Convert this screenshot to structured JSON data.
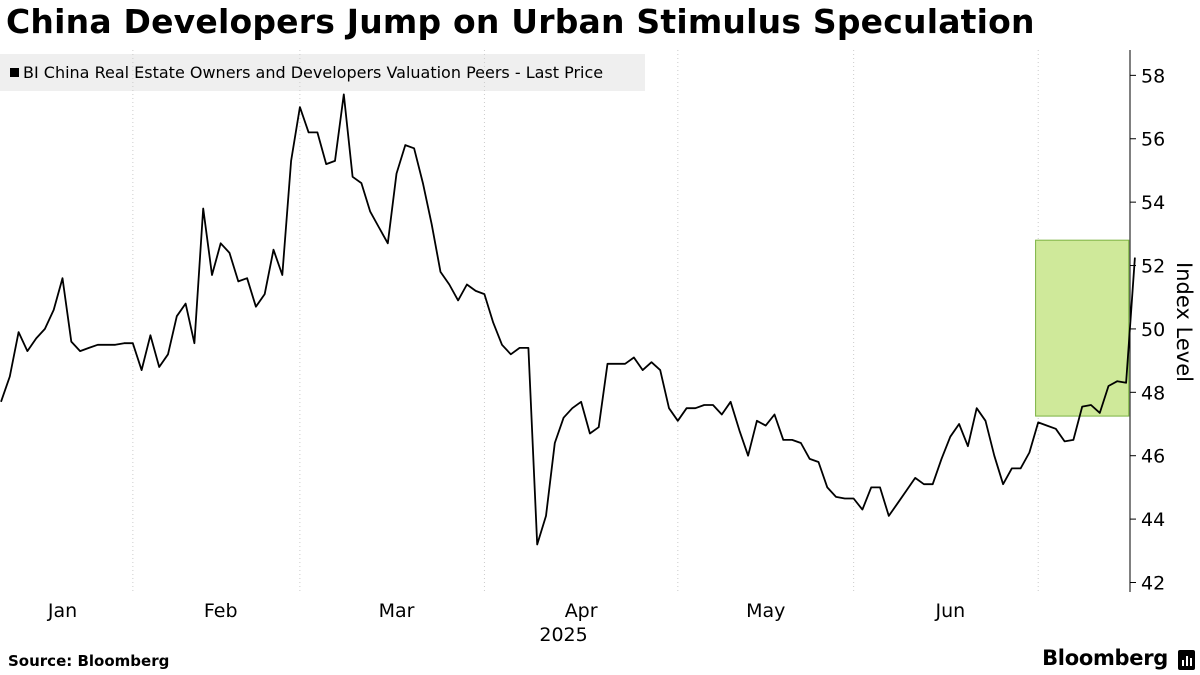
{
  "header": {
    "title": "China Developers Jump on Urban Stimulus Speculation"
  },
  "footer": {
    "source": "Source: Bloomberg",
    "brand": "Bloomberg"
  },
  "colors": {
    "line": "#000000",
    "highlight_fill": "#cfe99a",
    "highlight_stroke": "#7cb342",
    "legend_bg": "#efefef",
    "grid": "#cccccc"
  },
  "chart_data": {
    "type": "line",
    "ylabel": "Index Level",
    "ylim": [
      41.7,
      58.8
    ],
    "yticks": [
      42,
      44,
      46,
      48,
      50,
      52,
      54,
      56,
      58
    ],
    "x_unit": "trading day index (day 0 = 2 Jan 2025)",
    "xlim": [
      0,
      126
    ],
    "month_labels": [
      {
        "label": "Jan",
        "pos": 7
      },
      {
        "label": "Feb",
        "pos": 25
      },
      {
        "label": "Mar",
        "pos": 45
      },
      {
        "label": "Apr",
        "pos": 66
      },
      {
        "label": "May",
        "pos": 87
      },
      {
        "label": "Jun",
        "pos": 108
      }
    ],
    "year_label": {
      "label": "2025",
      "pos": 64
    },
    "month_boundaries": [
      15,
      34,
      55,
      77,
      97,
      118
    ],
    "highlight": {
      "x0": 117.7,
      "x1": 128.3,
      "y0": 47.25,
      "y1": 52.8
    },
    "series": [
      {
        "name": "BI China Real Estate Owners and Developers Valuation Peers - Last Price",
        "values": [
          47.7,
          48.5,
          49.9,
          49.3,
          49.7,
          50.0,
          50.6,
          51.6,
          49.6,
          49.3,
          49.4,
          49.5,
          49.5,
          49.5,
          49.55,
          49.55,
          48.7,
          49.8,
          48.8,
          49.2,
          50.4,
          50.8,
          49.55,
          53.8,
          51.7,
          52.7,
          52.4,
          51.5,
          51.6,
          50.7,
          51.1,
          52.5,
          51.7,
          55.3,
          57.0,
          56.2,
          56.2,
          55.2,
          55.3,
          57.4,
          54.8,
          54.6,
          53.7,
          53.2,
          52.7,
          54.9,
          55.8,
          55.7,
          54.6,
          53.3,
          51.8,
          51.4,
          50.9,
          51.4,
          51.2,
          51.1,
          50.2,
          49.5,
          49.2,
          49.4,
          49.4,
          43.2,
          44.1,
          46.4,
          47.2,
          47.5,
          47.7,
          46.7,
          46.9,
          48.9,
          48.9,
          48.9,
          49.1,
          48.7,
          48.95,
          48.7,
          47.5,
          47.1,
          47.5,
          47.5,
          47.6,
          47.6,
          47.3,
          47.7,
          46.8,
          46.0,
          47.1,
          46.95,
          47.3,
          46.5,
          46.5,
          46.4,
          45.9,
          45.8,
          45.0,
          44.7,
          44.65,
          44.65,
          44.3,
          45.0,
          45.0,
          44.1,
          44.5,
          44.9,
          45.3,
          45.1,
          45.1,
          45.9,
          46.6,
          47.0,
          46.3,
          47.5,
          47.1,
          46.0,
          45.1,
          45.6,
          45.6,
          46.1,
          47.05,
          46.95,
          46.85,
          46.45,
          46.5,
          47.55,
          47.6,
          47.35,
          48.2,
          48.35,
          48.3,
          52.25
        ]
      }
    ]
  }
}
